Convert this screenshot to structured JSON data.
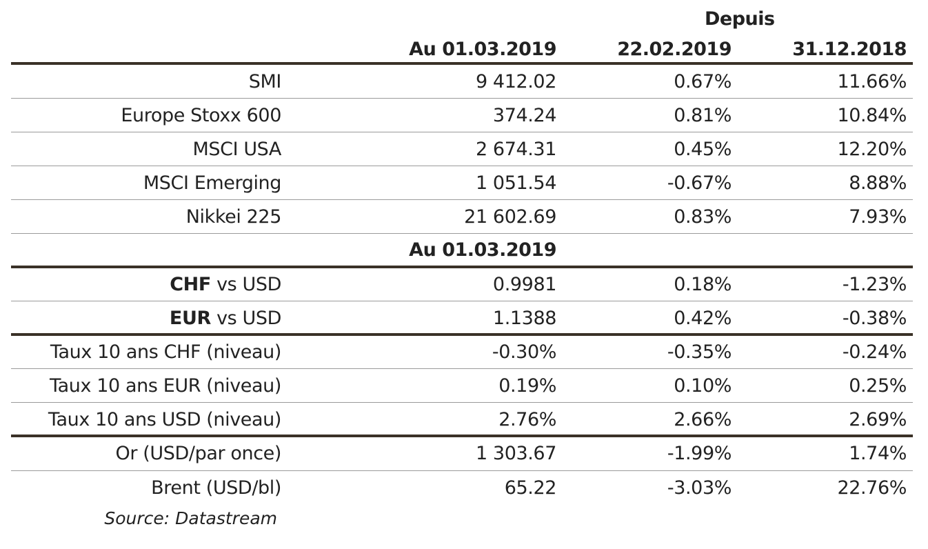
{
  "chart_data": {
    "type": "table",
    "header": {
      "group_label": "Depuis",
      "columns": [
        "Au 01.03.2019",
        "22.02.2019",
        "31.12.2018"
      ]
    },
    "sections": [
      {
        "rows": [
          {
            "label": "SMI",
            "values": [
              "9 412.02",
              "0.67%",
              "11.66%"
            ]
          },
          {
            "label": "Europe Stoxx 600",
            "values": [
              "374.24",
              "0.81%",
              "10.84%"
            ]
          },
          {
            "label": "MSCI USA",
            "values": [
              "2 674.31",
              "0.45%",
              "12.20%"
            ]
          },
          {
            "label": "MSCI Emerging",
            "values": [
              "1 051.54",
              "-0.67%",
              "8.88%"
            ]
          },
          {
            "label": "Nikkei 225",
            "values": [
              "21 602.69",
              "0.83%",
              "7.93%"
            ]
          }
        ]
      },
      {
        "subheader": "Au 01.03.2019",
        "rows": [
          {
            "label_bold": "CHF",
            "label_rest": " vs USD",
            "values": [
              "0.9981",
              "0.18%",
              "-1.23%"
            ]
          },
          {
            "label_bold": "EUR",
            "label_rest": " vs USD",
            "values": [
              "1.1388",
              "0.42%",
              "-0.38%"
            ]
          }
        ]
      },
      {
        "rows": [
          {
            "label": "Taux 10 ans CHF (niveau)",
            "values": [
              "-0.30%",
              "-0.35%",
              "-0.24%"
            ]
          },
          {
            "label": "Taux 10 ans EUR (niveau)",
            "values": [
              "0.19%",
              "0.10%",
              "0.25%"
            ]
          },
          {
            "label": "Taux 10 ans USD (niveau)",
            "values": [
              "2.76%",
              "2.66%",
              "2.69%"
            ]
          }
        ]
      },
      {
        "rows": [
          {
            "label": "Or (USD/par once)",
            "values": [
              "1 303.67",
              "-1.99%",
              "1.74%"
            ]
          },
          {
            "label": "Brent (USD/bl)",
            "values": [
              "65.22",
              "-3.03%",
              "22.76%"
            ]
          }
        ]
      }
    ],
    "source": "Source: Datastream"
  }
}
